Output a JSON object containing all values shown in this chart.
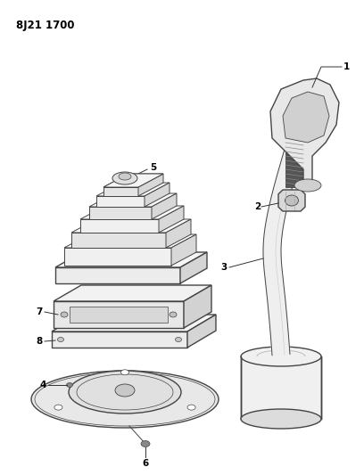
{
  "title_code": "8J21 1700",
  "background_color": "#ffffff",
  "line_color": "#444444",
  "label_color": "#000000",
  "fig_width": 4.08,
  "fig_height": 5.33,
  "dpi": 100
}
